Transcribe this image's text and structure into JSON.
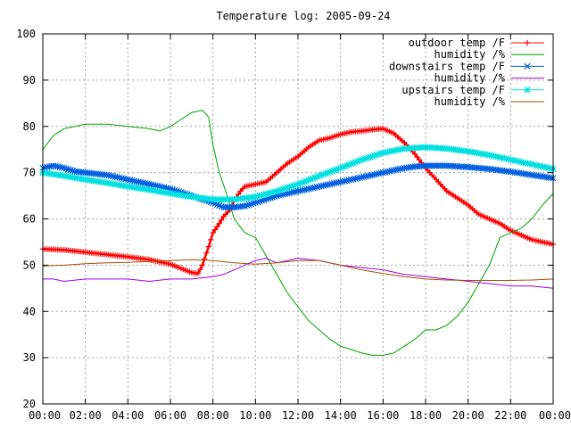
{
  "chart_data": {
    "type": "line",
    "title": "Temperature log: 2005-09-24",
    "xlabel": "",
    "ylabel": "",
    "xlim": [
      0,
      24
    ],
    "ylim": [
      20,
      100
    ],
    "x_ticks": [
      "00:00",
      "02:00",
      "04:00",
      "06:00",
      "08:00",
      "10:00",
      "12:00",
      "14:00",
      "16:00",
      "18:00",
      "20:00",
      "22:00",
      "00:00"
    ],
    "y_ticks": [
      20,
      30,
      40,
      50,
      60,
      70,
      80,
      90,
      100
    ],
    "grid": true,
    "legend_position": "top-right",
    "series": [
      {
        "name": "outdoor temp /F",
        "color": "#ff0000",
        "marker": "plus",
        "x": [
          0,
          1,
          2,
          3,
          4,
          5,
          6,
          6.5,
          7,
          7.3,
          7.5,
          7.8,
          8,
          8.3,
          8.5,
          8.8,
          9,
          9.3,
          9.5,
          10,
          10.5,
          11,
          11.5,
          12,
          12.5,
          13,
          13.5,
          14,
          14.5,
          15,
          15.5,
          16,
          16.5,
          17,
          17.5,
          18,
          18.5,
          19,
          19.5,
          20,
          20.5,
          21,
          21.5,
          22,
          22.5,
          23,
          23.5,
          24
        ],
        "y": [
          53.5,
          53.3,
          52.8,
          52.3,
          51.8,
          51.2,
          50.2,
          49.3,
          48.4,
          48.2,
          50,
          54,
          57,
          59,
          60.5,
          62,
          64,
          66,
          67,
          67.5,
          68,
          70,
          72,
          73.5,
          75.5,
          77,
          77.5,
          78.3,
          78.8,
          79,
          79.3,
          79.5,
          78.5,
          76.5,
          74,
          71,
          68.5,
          66,
          64.5,
          63,
          61,
          60,
          59,
          57.5,
          56.5,
          55.5,
          55,
          54.5
        ]
      },
      {
        "name": "humidity /%",
        "color": "#00a000",
        "marker": "none",
        "x": [
          0,
          0.5,
          1,
          2,
          3,
          4,
          5,
          5.5,
          6,
          6.5,
          7,
          7.5,
          7.8,
          8,
          8.3,
          8.6,
          9,
          9.5,
          10,
          10.5,
          11,
          11.5,
          12,
          12.5,
          13,
          13.5,
          14,
          15,
          15.5,
          16,
          16.5,
          17,
          17.5,
          18,
          18.5,
          19,
          19.5,
          20,
          20.5,
          21,
          21.5,
          22,
          22.5,
          23,
          23.5,
          24
        ],
        "y": [
          75,
          78,
          79.5,
          80.5,
          80.5,
          80,
          79.5,
          79,
          80,
          81.5,
          83,
          83.5,
          82,
          76,
          70,
          66,
          60,
          57,
          56,
          52,
          48,
          44,
          41,
          38,
          36,
          34,
          32.5,
          31,
          30.5,
          30.5,
          31,
          32.5,
          34,
          36,
          36,
          37,
          39,
          42,
          46,
          50,
          56,
          57,
          58,
          60,
          63,
          65.5
        ]
      },
      {
        "name": "downstairs temp /F",
        "color": "#0060e0",
        "marker": "cross",
        "x": [
          0,
          0.5,
          1,
          1.5,
          2,
          3,
          4,
          5,
          6,
          7,
          8,
          8.5,
          9,
          9.5,
          10,
          11,
          12,
          13,
          14,
          15,
          16,
          17,
          17.5,
          18,
          18.5,
          19,
          20,
          21,
          22,
          23,
          24
        ],
        "y": [
          71,
          71.5,
          71,
          70.3,
          70,
          69.5,
          68.5,
          67.5,
          66.5,
          65,
          63.5,
          62.5,
          62.5,
          62.8,
          63.5,
          65,
          66,
          67,
          68,
          69,
          70,
          71,
          71.3,
          71.5,
          71.5,
          71.5,
          71.2,
          70.8,
          70.2,
          69.5,
          68.8
        ]
      },
      {
        "name": "humidity /%",
        "color": "#a000e0",
        "marker": "none",
        "x": [
          0,
          0.5,
          1,
          2,
          3,
          4,
          5,
          6,
          7,
          8,
          8.5,
          9,
          9.5,
          10,
          10.5,
          11,
          11.5,
          12,
          13,
          14,
          15,
          16,
          17,
          18,
          19,
          20,
          21,
          22,
          23,
          24
        ],
        "y": [
          47,
          47,
          46.5,
          47,
          47,
          47,
          46.5,
          47,
          47,
          47.5,
          48,
          49,
          50,
          51,
          51.5,
          50.5,
          51,
          51.5,
          51,
          50,
          49.5,
          49,
          48,
          47.5,
          47,
          46.5,
          46,
          45.5,
          45.5,
          45
        ]
      },
      {
        "name": "upstairs temp /F",
        "color": "#00e0e0",
        "marker": "star",
        "x": [
          0,
          1,
          2,
          3,
          4,
          5,
          6,
          7,
          8,
          9,
          10,
          11,
          12,
          13,
          14,
          15,
          16,
          17,
          18,
          19,
          20,
          21,
          22,
          23,
          24
        ],
        "y": [
          70,
          69.3,
          68.5,
          67.8,
          67,
          66.3,
          65.5,
          64.8,
          64.2,
          64.2,
          64.8,
          66,
          67.5,
          69.3,
          71,
          72.8,
          74.3,
          75.2,
          75.5,
          75.2,
          74.6,
          73.8,
          72.8,
          71.8,
          70.8
        ]
      },
      {
        "name": "humidity /%",
        "color": "#a05000",
        "marker": "none",
        "x": [
          0,
          1,
          2,
          3,
          4,
          5,
          6,
          7,
          8,
          9,
          10,
          11,
          12,
          13,
          14,
          15,
          16,
          17,
          18,
          19,
          20,
          21,
          22,
          23,
          24
        ],
        "y": [
          49.8,
          50,
          50.3,
          50.5,
          50.6,
          50.8,
          51,
          51.2,
          51,
          50.5,
          50.2,
          50.5,
          51,
          51,
          50,
          49,
          48.2,
          47.5,
          47,
          46.8,
          46.7,
          46.7,
          46.7,
          46.8,
          47
        ]
      }
    ]
  }
}
